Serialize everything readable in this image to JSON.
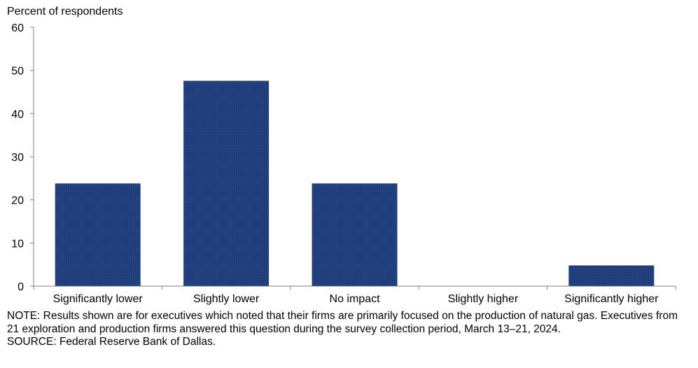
{
  "chart_data": {
    "type": "bar",
    "ylabel": "Percent of respondents",
    "categories": [
      "Significantly lower",
      "Slightly lower",
      "No impact",
      "Slightly higher",
      "Significantly higher"
    ],
    "values": [
      23.8,
      47.6,
      23.8,
      0,
      4.8
    ],
    "ylim": [
      0,
      60
    ],
    "yticks": [
      0,
      10,
      20,
      30,
      40,
      50,
      60
    ],
    "bar_color": "#1f3d7a",
    "grid": false,
    "legend": "none"
  },
  "notes": {
    "note": "NOTE:  Results shown are for executives which noted that their firms are primarily focused on the production of natural gas. Executives from 21 exploration and production firms answered this question during the survey collection period, March 13–21, 2024.",
    "source": "SOURCE:  Federal Reserve Bank of Dallas."
  }
}
